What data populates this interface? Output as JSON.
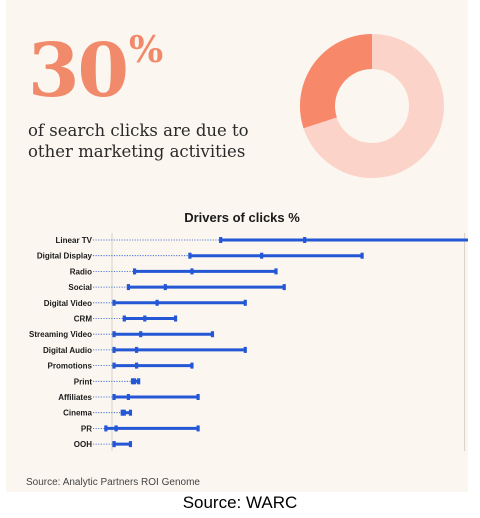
{
  "headline": {
    "number": "30",
    "unit": "%"
  },
  "subhead": "of search clicks are due to other marketing activities",
  "donut": {
    "highlight_fraction": 0.3,
    "highlight_color": "#f7896a",
    "rest_color": "#fbd3c8"
  },
  "chart_data": {
    "type": "range-dot",
    "title": "Drivers of clicks %",
    "xlabel": "",
    "ylabel": "",
    "categories": [
      "Linear TV",
      "Digital Display",
      "Radio",
      "Social",
      "Digital Video",
      "CRM",
      "Streaming Video",
      "Digital Audio",
      "Promotions",
      "Print",
      "Affiliates",
      "Cinema",
      "PR",
      "OOH"
    ],
    "min": [
      26.5,
      19.0,
      5.5,
      4.0,
      0.5,
      3.0,
      0.5,
      0.5,
      0.5,
      5.0,
      0.5,
      2.5,
      -1.5,
      0.5
    ],
    "median": [
      47.0,
      36.5,
      19.5,
      13.0,
      11.0,
      8.0,
      7.0,
      6.0,
      6.0,
      5.5,
      4.0,
      3.0,
      1.0,
      0.5
    ],
    "max": [
      88.5,
      61.0,
      40.0,
      42.0,
      32.5,
      15.5,
      24.5,
      32.5,
      19.5,
      6.5,
      21.0,
      4.5,
      21.0,
      4.5
    ],
    "reference_lines": [
      0,
      86
    ],
    "colors": {
      "bar": "#2457d6",
      "leader": "#2457d6",
      "reference": "#d6d1c7"
    }
  },
  "footnote": "Source: Analytic Partners ROI Genome",
  "source": "Source: WARC"
}
